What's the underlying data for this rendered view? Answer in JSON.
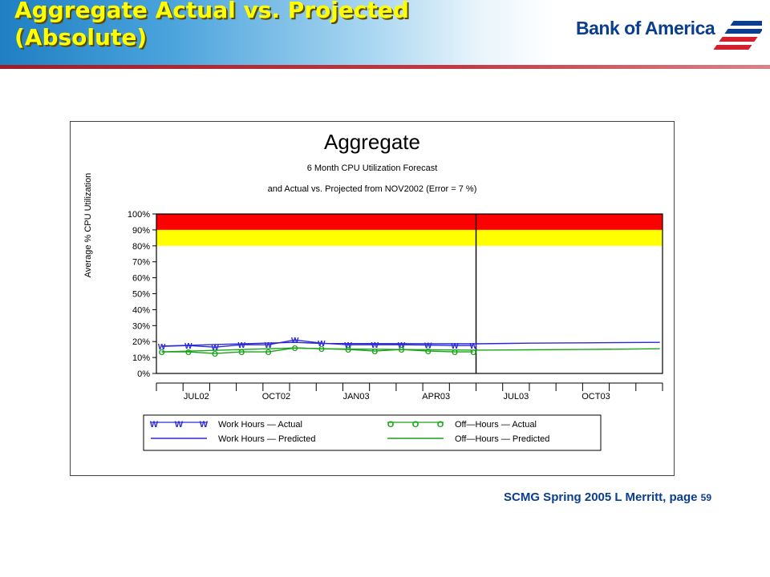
{
  "slide": {
    "title_line1": "Aggregate Actual vs. Projected",
    "title_line2": "(Absolute)",
    "logo_text": "Bank of America",
    "footer_text": "SCMG Spring 2005    L Merritt, page ",
    "footer_page": "59"
  },
  "colors": {
    "title": "#ffff00",
    "critical_band": "#ff0000",
    "warning_band": "#ffff00",
    "work_hours": "#2a2ad4",
    "off_hours": "#1aa31a"
  },
  "chart_data": {
    "type": "line",
    "title": "Aggregate",
    "subtitle1": "6 Month CPU Utilization Forecast",
    "subtitle2": "and Actual vs. Projected from NOV2002 (Error =       7 %)",
    "ylabel": "Average % CPU Utilization",
    "xlabel": "",
    "ylim": [
      0,
      100
    ],
    "yticks": [
      "0%",
      "10%",
      "20%",
      "30%",
      "40%",
      "50%",
      "60%",
      "70%",
      "80%",
      "90%",
      "100%"
    ],
    "ytick_values": [
      0,
      10,
      20,
      30,
      40,
      50,
      60,
      70,
      80,
      90,
      100
    ],
    "xlim": [
      0,
      19
    ],
    "x_tick_labels": [
      {
        "x": 1.5,
        "label": "JUL02"
      },
      {
        "x": 4.5,
        "label": "OCT02"
      },
      {
        "x": 7.5,
        "label": "JAN03"
      },
      {
        "x": 10.5,
        "label": "APR03"
      },
      {
        "x": 13.5,
        "label": "JUL03"
      },
      {
        "x": 16.5,
        "label": "OCT03"
      }
    ],
    "x_minor_ticks": [
      0,
      1,
      2,
      3,
      4,
      5,
      6,
      7,
      8,
      9,
      10,
      11,
      12,
      13,
      14,
      15,
      16,
      17,
      18,
      19
    ],
    "forecast_start_x": 12,
    "bands": [
      {
        "name": "critical",
        "from": 90,
        "to": 100,
        "color": "#ff0000"
      },
      {
        "name": "warning",
        "from": 80,
        "to": 90,
        "color": "#ffff00"
      }
    ],
    "series": [
      {
        "name": "Work Hours — Actual",
        "style": "markers",
        "marker": "W",
        "color": "#2a2ad4",
        "x": [
          0.2,
          1.2,
          2.2,
          3.2,
          4.2,
          5.2,
          6.2,
          7.2,
          8.2,
          9.2,
          10.2,
          11.2,
          11.9
        ],
        "y": [
          17,
          17.5,
          16.5,
          18,
          18,
          21,
          19,
          18,
          18,
          18,
          17.8,
          17.5,
          17.5
        ]
      },
      {
        "name": "Work Hours — Predicted",
        "style": "line",
        "color": "#2a2ad4",
        "x": [
          0.2,
          5.2,
          6.2,
          12,
          14,
          16,
          18.9
        ],
        "y": [
          17.2,
          19.5,
          18.8,
          18.6,
          19,
          19.2,
          19.5
        ]
      },
      {
        "name": "Off—Hours — Actual",
        "style": "markers",
        "marker": "O",
        "color": "#1aa31a",
        "x": [
          0.2,
          1.2,
          2.2,
          3.2,
          4.2,
          5.2,
          6.2,
          7.2,
          8.2,
          9.2,
          10.2,
          11.2,
          11.9
        ],
        "y": [
          13.5,
          13.5,
          12.5,
          13.5,
          13.5,
          16,
          15.5,
          15,
          14,
          15,
          14,
          13.5,
          13.5
        ]
      },
      {
        "name": "Off—Hours — Predicted",
        "style": "line",
        "color": "#1aa31a",
        "x": [
          0.2,
          5.2,
          6.2,
          12,
          14,
          16,
          18.9
        ],
        "y": [
          13.5,
          16,
          15.5,
          14.6,
          14.8,
          15,
          15.5
        ]
      }
    ],
    "legend": {
      "position": "bottom",
      "entries": [
        {
          "label": "Work Hours  —  Actual",
          "marker": "W",
          "color": "#2a2ad4"
        },
        {
          "label": "Off—Hours  —  Actual",
          "marker": "O",
          "color": "#1aa31a"
        },
        {
          "label": "Work Hours  —  Predicted",
          "marker": "line",
          "color": "#2a2ad4"
        },
        {
          "label": "Off—Hours  —  Predicted",
          "marker": "line",
          "color": "#1aa31a"
        }
      ]
    }
  }
}
